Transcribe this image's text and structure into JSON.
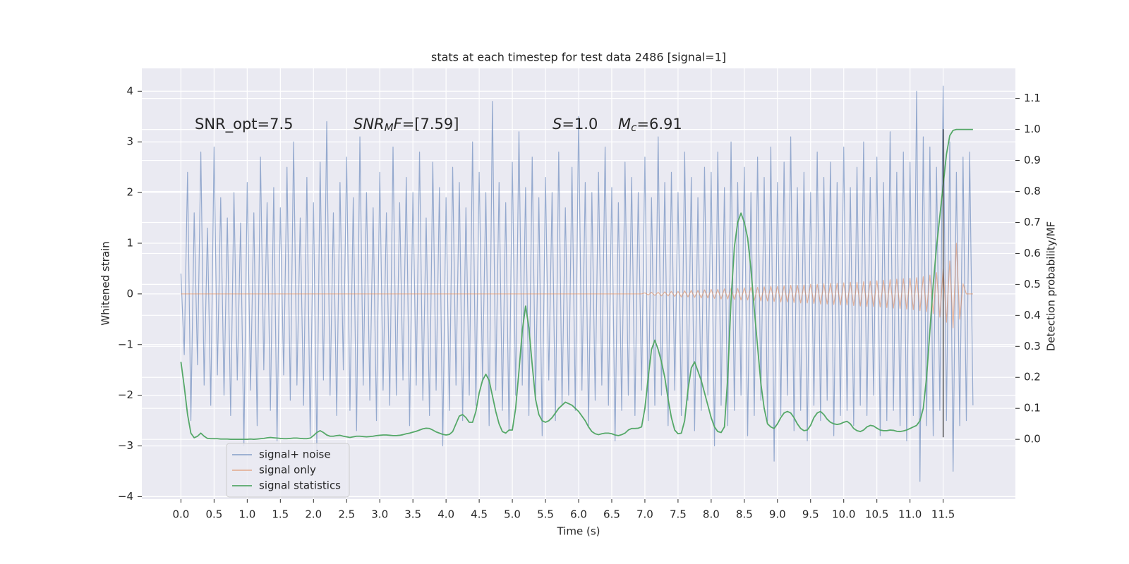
{
  "chart_data": {
    "type": "line",
    "title": "stats at each timestep for test data 2486 [signal=1]",
    "xlabel": "Time (s)",
    "ylabel": "Whitened strain",
    "y2label": "Detection probability/MF",
    "annotations": [
      [
        {
          "t": "SNR_opt=7.5"
        }
      ],
      [
        {
          "t": "SNR",
          "style": "italic"
        },
        {
          "t": "M",
          "style": "sub"
        },
        {
          "t": "F",
          "style": "italic"
        },
        {
          "t": "=[7.59]"
        }
      ],
      [
        {
          "t": "S",
          "style": "italic"
        },
        {
          "t": "=1.0"
        }
      ],
      [
        {
          "t": "M",
          "style": "italic"
        },
        {
          "t": "c",
          "style": "sub"
        },
        {
          "t": "=6.91"
        }
      ]
    ],
    "xlim": [
      -0.59,
      12.59
    ],
    "ylim": [
      -4.05,
      4.45
    ],
    "y2lim": [
      -0.193,
      1.197
    ],
    "xticks": [
      {
        "value": 0,
        "label": "0.0"
      },
      0.5,
      {
        "value": 1,
        "label": "1.0"
      },
      1.5,
      {
        "value": 2,
        "label": "2.0"
      },
      2.5,
      {
        "value": 3,
        "label": "3.0"
      },
      3.5,
      {
        "value": 4,
        "label": "4.0"
      },
      4.5,
      {
        "value": 5,
        "label": "5.0"
      },
      5.5,
      {
        "value": 6,
        "label": "6.0"
      },
      6.5,
      {
        "value": 7,
        "label": "7.0"
      },
      7.5,
      {
        "value": 8,
        "label": "8.0"
      },
      8.5,
      {
        "value": 9,
        "label": "9.0"
      },
      9.5,
      {
        "value": 10,
        "label": "10.0"
      },
      10.5,
      {
        "value": 11,
        "label": "11.0"
      },
      11.5
    ],
    "yticks": [
      {
        "value": -4,
        "label": "−4"
      },
      {
        "value": -3,
        "label": "−3"
      },
      {
        "value": -2,
        "label": "−2"
      },
      {
        "value": -1,
        "label": "−1"
      },
      0,
      1,
      2,
      3,
      4
    ],
    "y2ticks": [
      {
        "value": 0,
        "label": "0.0"
      },
      0.1,
      0.2,
      0.3,
      0.4,
      0.5,
      0.6,
      0.7,
      0.8,
      0.9,
      {
        "value": 1,
        "label": "1.0"
      },
      1.1
    ],
    "grid": true,
    "legend_loc": "lower left",
    "vline": {
      "x": 11.5,
      "ymin": -2.83,
      "ymax": 3.25,
      "color": "#333333"
    },
    "x": [
      0,
      0.05,
      0.1,
      0.15,
      0.2,
      0.25,
      0.3,
      0.35,
      0.4,
      0.45,
      0.5,
      0.55,
      0.6,
      0.65,
      0.7,
      0.75,
      0.8,
      0.85,
      0.9,
      0.95,
      1,
      1.05,
      1.1,
      1.15,
      1.2,
      1.25,
      1.3,
      1.35,
      1.4,
      1.45,
      1.5,
      1.55,
      1.6,
      1.65,
      1.7,
      1.75,
      1.8,
      1.85,
      1.9,
      1.95,
      2,
      2.05,
      2.1,
      2.15,
      2.2,
      2.25,
      2.3,
      2.35,
      2.4,
      2.45,
      2.5,
      2.55,
      2.6,
      2.65,
      2.7,
      2.75,
      2.8,
      2.85,
      2.9,
      2.95,
      3,
      3.05,
      3.1,
      3.15,
      3.2,
      3.25,
      3.3,
      3.35,
      3.4,
      3.45,
      3.5,
      3.55,
      3.6,
      3.65,
      3.7,
      3.75,
      3.8,
      3.85,
      3.9,
      3.95,
      4,
      4.05,
      4.1,
      4.15,
      4.2,
      4.25,
      4.3,
      4.35,
      4.4,
      4.45,
      4.5,
      4.55,
      4.6,
      4.65,
      4.7,
      4.75,
      4.8,
      4.85,
      4.9,
      4.95,
      5,
      5.05,
      5.1,
      5.15,
      5.2,
      5.25,
      5.3,
      5.35,
      5.4,
      5.45,
      5.5,
      5.55,
      5.6,
      5.65,
      5.7,
      5.75,
      5.8,
      5.85,
      5.9,
      5.95,
      6,
      6.05,
      6.1,
      6.15,
      6.2,
      6.25,
      6.3,
      6.35,
      6.4,
      6.45,
      6.5,
      6.55,
      6.6,
      6.65,
      6.7,
      6.75,
      6.8,
      6.85,
      6.9,
      6.95,
      7,
      7.05,
      7.1,
      7.15,
      7.2,
      7.25,
      7.3,
      7.35,
      7.4,
      7.45,
      7.5,
      7.55,
      7.6,
      7.65,
      7.7,
      7.75,
      7.8,
      7.85,
      7.9,
      7.95,
      8,
      8.05,
      8.1,
      8.15,
      8.2,
      8.25,
      8.3,
      8.35,
      8.4,
      8.45,
      8.5,
      8.55,
      8.6,
      8.65,
      8.7,
      8.75,
      8.8,
      8.85,
      8.9,
      8.95,
      9,
      9.05,
      9.1,
      9.15,
      9.2,
      9.25,
      9.3,
      9.35,
      9.4,
      9.45,
      9.5,
      9.55,
      9.6,
      9.65,
      9.7,
      9.75,
      9.8,
      9.85,
      9.9,
      9.95,
      10,
      10.05,
      10.1,
      10.15,
      10.2,
      10.25,
      10.3,
      10.35,
      10.4,
      10.45,
      10.5,
      10.55,
      10.6,
      10.65,
      10.7,
      10.75,
      10.8,
      10.85,
      10.9,
      10.95,
      11,
      11.05,
      11.1,
      11.15,
      11.2,
      11.25,
      11.3,
      11.35,
      11.4,
      11.45,
      11.5,
      11.55,
      11.6,
      11.65,
      11.7,
      11.75,
      11.8,
      11.85,
      11.9,
      11.95
    ],
    "series": [
      {
        "name": "signal+ noise",
        "color": "#4c72b0",
        "opacity": 0.55,
        "values": [
          0.4,
          -1.2,
          2.4,
          -2.5,
          1.6,
          -1.4,
          2.8,
          -1.8,
          1.3,
          -2.2,
          2.9,
          -1.6,
          1.9,
          -2.0,
          1.5,
          -2.4,
          2.0,
          -1.7,
          1.4,
          -3.0,
          2.2,
          -1.9,
          1.6,
          -2.6,
          2.7,
          -1.5,
          1.8,
          -2.3,
          2.1,
          -2.9,
          1.7,
          -1.6,
          2.5,
          -2.1,
          3.0,
          -1.8,
          1.5,
          -2.2,
          2.3,
          -2.8,
          1.8,
          -3.1,
          2.6,
          -1.7,
          3.4,
          -2.0,
          1.6,
          -2.4,
          2.2,
          -1.5,
          2.7,
          -2.3,
          1.9,
          -2.7,
          3.1,
          -1.8,
          2.0,
          -2.1,
          1.7,
          -2.5,
          2.4,
          -1.9,
          1.6,
          -2.2,
          2.9,
          -2.0,
          1.8,
          -1.7,
          2.3,
          -2.6,
          2.0,
          -1.8,
          2.8,
          -2.1,
          1.5,
          -2.4,
          2.6,
          -1.9,
          2.1,
          -3.0,
          1.9,
          -2.3,
          2.5,
          -1.8,
          2.2,
          -2.5,
          1.7,
          -2.0,
          3.0,
          -2.2,
          2.4,
          -1.7,
          2.0,
          -2.6,
          3.8,
          -1.9,
          2.2,
          -2.3,
          1.8,
          -2.7,
          2.6,
          -2.0,
          3.2,
          -1.8,
          2.1,
          -2.4,
          2.7,
          -2.1,
          1.9,
          -2.8,
          2.3,
          -1.7,
          2.0,
          -2.5,
          2.8,
          -2.2,
          1.7,
          -2.0,
          2.5,
          -2.3,
          3.5,
          -1.9,
          2.2,
          -2.6,
          2.0,
          -2.1,
          2.4,
          -1.8,
          2.9,
          -2.2,
          2.1,
          -2.9,
          1.8,
          -2.3,
          2.6,
          -2.0,
          2.3,
          -2.4,
          2.0,
          -1.9,
          2.7,
          -2.5,
          1.9,
          -2.2,
          3.1,
          -2.0,
          2.2,
          -2.6,
          2.4,
          -1.9,
          2.0,
          -2.4,
          2.8,
          -2.1,
          2.3,
          -2.7,
          1.9,
          -2.3,
          2.5,
          -2.0,
          2.4,
          -3.0,
          2.8,
          -2.2,
          2.1,
          -2.6,
          3.0,
          -2.3,
          2.2,
          -2.0,
          2.5,
          -2.8,
          2.0,
          -2.4,
          2.7,
          -2.1,
          2.3,
          -2.5,
          2.9,
          -3.3,
          2.2,
          -2.4,
          2.6,
          -2.0,
          3.1,
          -2.7,
          2.1,
          -2.3,
          2.4,
          -2.9,
          2.0,
          -2.2,
          2.8,
          -2.5,
          2.3,
          -2.1,
          2.6,
          -2.8,
          2.2,
          -2.4,
          2.9,
          -2.3,
          2.1,
          -2.6,
          2.5,
          -2.2,
          3.0,
          -2.4,
          2.3,
          -2.0,
          2.7,
          -2.8,
          2.2,
          -2.5,
          3.2,
          -2.3,
          2.4,
          -2.6,
          2.8,
          -2.9,
          2.6,
          -2.4,
          4.0,
          -3.7,
          3.1,
          -2.6,
          2.9,
          -2.8,
          2.5,
          -2.3,
          4.1,
          -2.5,
          3.0,
          -3.5,
          2.4,
          -2.6,
          2.7,
          -2.5,
          2.8,
          -2.2
        ]
      },
      {
        "name": "signal only",
        "color": "#dd8452",
        "opacity": 0.55,
        "values": [
          0,
          0,
          0,
          0,
          0,
          0,
          0,
          0,
          0,
          0,
          0,
          0,
          0,
          0,
          0,
          0,
          0,
          0,
          0,
          0,
          0,
          0,
          0,
          0,
          0,
          0,
          0,
          0,
          0,
          0,
          0,
          0,
          0,
          0,
          0,
          0,
          0,
          0,
          0,
          0,
          0,
          0,
          0,
          0,
          0,
          0,
          0,
          0,
          0,
          0,
          0,
          0,
          0,
          0,
          0,
          0,
          0,
          0,
          0,
          0,
          0,
          0,
          0,
          0,
          0,
          0,
          0,
          0,
          0,
          0,
          0,
          0,
          0,
          0,
          0,
          0,
          0,
          0,
          0,
          0,
          0,
          0,
          0,
          0,
          0,
          0,
          0,
          0,
          0,
          0,
          0,
          0,
          0,
          0,
          0,
          0,
          0,
          0,
          0,
          0,
          0,
          0,
          0,
          0,
          0,
          0,
          0,
          0,
          0,
          0,
          0,
          0,
          0,
          0,
          0,
          0,
          0,
          0,
          0,
          0,
          0,
          0,
          0,
          0,
          0,
          0,
          0,
          0,
          0,
          0,
          0,
          0,
          0,
          0,
          0,
          0,
          0,
          0,
          0,
          0,
          0.02,
          -0.02,
          0.03,
          -0.03,
          0.03,
          -0.04,
          0.04,
          -0.04,
          0.05,
          -0.05,
          0.05,
          -0.06,
          0.06,
          -0.06,
          0.07,
          -0.07,
          0.07,
          -0.08,
          0.08,
          -0.08,
          0.09,
          -0.09,
          0.09,
          -0.1,
          0.1,
          -0.1,
          0.11,
          -0.11,
          0.11,
          -0.12,
          0.12,
          -0.12,
          0.13,
          -0.13,
          0.13,
          -0.14,
          0.14,
          -0.14,
          0.15,
          -0.15,
          0.15,
          -0.16,
          0.16,
          -0.16,
          0.17,
          -0.17,
          0.17,
          -0.18,
          0.18,
          -0.18,
          0.19,
          -0.19,
          0.19,
          -0.2,
          0.2,
          -0.2,
          0.21,
          -0.21,
          0.21,
          -0.22,
          0.22,
          -0.22,
          0.23,
          -0.23,
          0.23,
          -0.24,
          0.24,
          -0.25,
          0.25,
          -0.25,
          0.26,
          -0.26,
          0.27,
          -0.27,
          0.28,
          -0.28,
          0.29,
          -0.29,
          0.3,
          -0.3,
          0.31,
          -0.31,
          0.32,
          -0.33,
          0.34,
          -0.35,
          0.37,
          -0.39,
          0.42,
          -0.46,
          0.5,
          -0.56,
          0.65,
          -0.67,
          1.0,
          -0.5,
          0.2,
          0,
          0,
          0
        ]
      },
      {
        "name": "signal statistics",
        "color": "#55a868",
        "opacity": 1,
        "axis": "y2",
        "values": [
          0.25,
          0.17,
          0.08,
          0.02,
          0.005,
          0.01,
          0.02,
          0.01,
          0.003,
          0.002,
          0.002,
          0.002,
          0.001,
          0.001,
          0.001,
          0,
          0,
          0,
          0,
          0,
          0,
          0.001,
          0,
          0.001,
          0.002,
          0.003,
          0.005,
          0.006,
          0.005,
          0.004,
          0.003,
          0.002,
          0.002,
          0.003,
          0.004,
          0.004,
          0.003,
          0.002,
          0.002,
          0.004,
          0.012,
          0.022,
          0.028,
          0.022,
          0.014,
          0.01,
          0.01,
          0.012,
          0.013,
          0.01,
          0.008,
          0.006,
          0.008,
          0.01,
          0.01,
          0.009,
          0.008,
          0.009,
          0.01,
          0.012,
          0.013,
          0.014,
          0.014,
          0.013,
          0.012,
          0.012,
          0.013,
          0.015,
          0.018,
          0.02,
          0.023,
          0.026,
          0.03,
          0.034,
          0.036,
          0.035,
          0.03,
          0.024,
          0.02,
          0.016,
          0.014,
          0.016,
          0.025,
          0.05,
          0.075,
          0.08,
          0.07,
          0.055,
          0.055,
          0.09,
          0.15,
          0.19,
          0.21,
          0.19,
          0.14,
          0.09,
          0.05,
          0.025,
          0.02,
          0.03,
          0.03,
          0.1,
          0.22,
          0.35,
          0.43,
          0.36,
          0.24,
          0.13,
          0.08,
          0.06,
          0.055,
          0.06,
          0.07,
          0.085,
          0.1,
          0.11,
          0.12,
          0.115,
          0.11,
          0.1,
          0.09,
          0.075,
          0.06,
          0.04,
          0.025,
          0.018,
          0.015,
          0.018,
          0.02,
          0.02,
          0.018,
          0.014,
          0.012,
          0.015,
          0.02,
          0.03,
          0.035,
          0.035,
          0.036,
          0.04,
          0.1,
          0.2,
          0.29,
          0.32,
          0.29,
          0.25,
          0.2,
          0.13,
          0.07,
          0.03,
          0.018,
          0.02,
          0.06,
          0.16,
          0.23,
          0.25,
          0.22,
          0.19,
          0.15,
          0.11,
          0.07,
          0.04,
          0.025,
          0.022,
          0.04,
          0.2,
          0.45,
          0.62,
          0.7,
          0.73,
          0.7,
          0.65,
          0.55,
          0.42,
          0.3,
          0.18,
          0.1,
          0.05,
          0.04,
          0.035,
          0.05,
          0.07,
          0.085,
          0.09,
          0.085,
          0.07,
          0.05,
          0.035,
          0.028,
          0.03,
          0.045,
          0.07,
          0.085,
          0.09,
          0.08,
          0.065,
          0.055,
          0.05,
          0.048,
          0.05,
          0.055,
          0.058,
          0.05,
          0.035,
          0.028,
          0.025,
          0.03,
          0.04,
          0.045,
          0.043,
          0.036,
          0.03,
          0.028,
          0.028,
          0.03,
          0.029,
          0.026,
          0.025,
          0.027,
          0.03,
          0.035,
          0.04,
          0.045,
          0.06,
          0.1,
          0.2,
          0.35,
          0.5,
          0.62,
          0.72,
          0.82,
          0.92,
          0.98,
          0.997,
          1.0,
          1.0,
          1.0,
          1.0,
          1.0,
          1.0
        ]
      }
    ]
  }
}
